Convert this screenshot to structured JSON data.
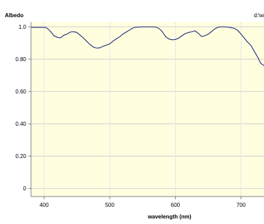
{
  "chart_data": {
    "type": "line",
    "title": "Albedo",
    "path_label": "d:\\w",
    "xlabel": "wavelength (nm)",
    "ylabel": "",
    "xlim": [
      380,
      735
    ],
    "ylim": [
      -0.05,
      1.03
    ],
    "xticks": [
      400,
      500,
      600,
      700
    ],
    "xtick_labels": [
      "400",
      "500",
      "600",
      "700"
    ],
    "yticks": [
      0,
      0.2,
      0.4,
      0.6,
      0.8,
      1.0
    ],
    "ytick_labels": [
      "0",
      "0.20",
      "0.40",
      "0.60",
      "0.80",
      "1.0"
    ],
    "grid": true,
    "series": [
      {
        "x": [
          380,
          402,
          405,
          410,
          415,
          420,
          425,
          430,
          435,
          440,
          445,
          450,
          455,
          460,
          465,
          470,
          475,
          480,
          485,
          490,
          495,
          500,
          505,
          510,
          515,
          520,
          525,
          530,
          535,
          540,
          545,
          550,
          555,
          560,
          565,
          570,
          575,
          580,
          585,
          590,
          595,
          600,
          605,
          610,
          615,
          620,
          625,
          630,
          635,
          640,
          645,
          650,
          655,
          660,
          665,
          670,
          675,
          680,
          685,
          690,
          695,
          700,
          705,
          710,
          715,
          720,
          725,
          730,
          735
        ],
        "y": [
          0.997,
          0.997,
          0.99,
          0.97,
          0.945,
          0.935,
          0.932,
          0.948,
          0.955,
          0.968,
          0.97,
          0.965,
          0.948,
          0.93,
          0.91,
          0.89,
          0.875,
          0.868,
          0.87,
          0.88,
          0.887,
          0.895,
          0.912,
          0.926,
          0.938,
          0.955,
          0.968,
          0.98,
          0.992,
          0.998,
          0.999,
          1.0,
          1.0,
          1.0,
          1.0,
          0.999,
          0.99,
          0.97,
          0.94,
          0.925,
          0.92,
          0.922,
          0.93,
          0.945,
          0.958,
          0.965,
          0.97,
          0.975,
          0.96,
          0.94,
          0.945,
          0.955,
          0.97,
          0.987,
          0.998,
          1.0,
          1.0,
          0.998,
          0.995,
          0.99,
          0.978,
          0.955,
          0.93,
          0.905,
          0.885,
          0.85,
          0.815,
          0.775,
          0.76
        ]
      }
    ]
  }
}
